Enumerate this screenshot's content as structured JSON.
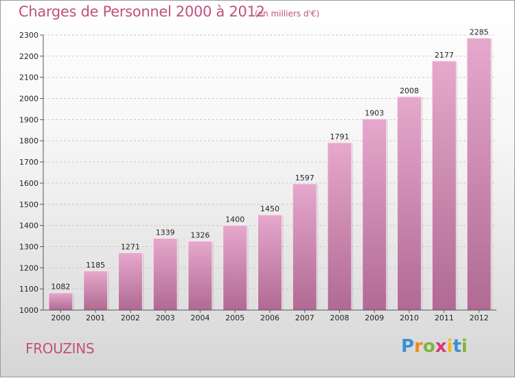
{
  "header": {
    "title": "Charges de Personnel 2000 à 2012",
    "subtitle": "(en milliers d'€)"
  },
  "footer": {
    "place": "FROUZINS",
    "logo_letters": [
      {
        "ch": "P",
        "color": "#3b8fd6"
      },
      {
        "ch": "r",
        "color": "#f08a1c"
      },
      {
        "ch": "o",
        "color": "#7fb63a"
      },
      {
        "ch": "x",
        "color": "#d53a7a"
      },
      {
        "ch": "i",
        "color": "#f2b81c"
      },
      {
        "ch": "t",
        "color": "#3b8fd6"
      },
      {
        "ch": "i",
        "color": "#7fb63a"
      }
    ]
  },
  "colors": {
    "bar_top": "#e6a8cc",
    "bar_bottom": "#b06a93",
    "accent": "#c0507e"
  },
  "chart_data": {
    "type": "bar",
    "title": "Charges de Personnel 2000 à 2012",
    "subtitle": "(en milliers d'€)",
    "categories": [
      "2000",
      "2001",
      "2002",
      "2003",
      "2004",
      "2005",
      "2006",
      "2007",
      "2008",
      "2009",
      "2010",
      "2011",
      "2012"
    ],
    "values": [
      1082,
      1185,
      1271,
      1339,
      1326,
      1400,
      1450,
      1597,
      1791,
      1903,
      2008,
      2177,
      2285
    ],
    "ylim": [
      1000,
      2300
    ],
    "yticks": [
      1000,
      1100,
      1200,
      1300,
      1400,
      1500,
      1600,
      1700,
      1800,
      1900,
      2000,
      2100,
      2200,
      2300
    ],
    "grid": true,
    "data_labels": true
  }
}
